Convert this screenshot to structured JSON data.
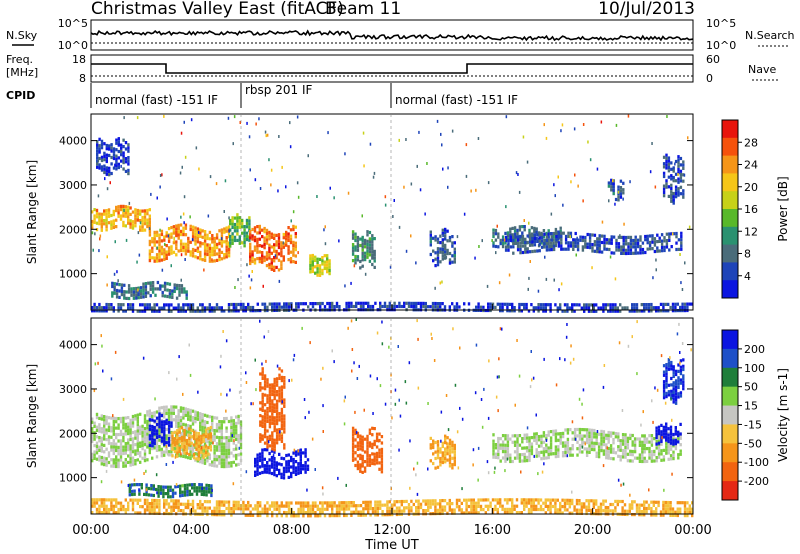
{
  "header": {
    "title": "Christmas Valley East (fitACF)",
    "beam": "Beam 11",
    "date": "10/Jul/2013"
  },
  "top_panels": {
    "nsky_label": "N.Sky",
    "nsearch_label": "N.Search",
    "noise_ticks": [
      "10^5",
      "10^0"
    ],
    "freq_label_1": "Freq.",
    "freq_label_2": "[MHz]",
    "freq_ticks": [
      "18",
      "8"
    ],
    "nave_ticks": [
      "60",
      "0"
    ],
    "nave_label": "Nave",
    "cpid_label": "CPID"
  },
  "cpid_segments": [
    {
      "label": "normal (fast) -151 IF",
      "start_hour": 0,
      "end_hour": 6
    },
    {
      "label": "rbsp 201 IF",
      "start_hour": 6,
      "end_hour": 12
    },
    {
      "label": "normal (fast) -151 IF",
      "start_hour": 12,
      "end_hour": 24
    }
  ],
  "axes": {
    "ylabel": "Slant Range [km]",
    "y_ticks": [
      "1000",
      "2000",
      "3000",
      "4000"
    ],
    "xlabel": "Time UT",
    "x_ticks": [
      "00:00",
      "04:00",
      "08:00",
      "12:00",
      "16:00",
      "20:00",
      "00:00"
    ]
  },
  "power_scale": {
    "label": "Power [dB]",
    "ticks": [
      "28",
      "24",
      "20",
      "16",
      "12",
      "8",
      "4"
    ],
    "colors": [
      "#e8140c",
      "#f5520c",
      "#f59518",
      "#f5c618",
      "#c7d118",
      "#58b82a",
      "#2a9170",
      "#4a6c7a",
      "#1e44b8",
      "#0b15e0"
    ]
  },
  "velocity_scale": {
    "label": "Velocity [m s-1]",
    "ticks": [
      "200",
      "100",
      "50",
      "15",
      "-15",
      "-50",
      "-100",
      "-200"
    ],
    "colors": [
      "#0b15e0",
      "#1e50c8",
      "#1f7e3a",
      "#7ccf40",
      "#c6c6c2",
      "#f5c23c",
      "#f5951a",
      "#f26410",
      "#e52814"
    ]
  },
  "chart_data": [
    {
      "type": "heatmap",
      "name": "Power",
      "x_unit": "hours UT",
      "y_unit": "km",
      "xlim": [
        0,
        24
      ],
      "ylim": [
        180,
        4600
      ],
      "zlabel": "Power [dB]",
      "echo_regions": [
        {
          "x": [
            0,
            2.3
          ],
          "range": [
            2050,
            2500
          ],
          "value": 22
        },
        {
          "x": [
            2.3,
            5.5
          ],
          "range": [
            1350,
            2050
          ],
          "value": 24
        },
        {
          "x": [
            5.5,
            6.3
          ],
          "range": [
            1700,
            2300
          ],
          "value": 14
        },
        {
          "x": [
            6.3,
            8.2
          ],
          "range": [
            1150,
            2000
          ],
          "value": 26
        },
        {
          "x": [
            8.7,
            9.5
          ],
          "range": [
            1000,
            1400
          ],
          "value": 18
        },
        {
          "x": [
            10.4,
            11.3
          ],
          "range": [
            1200,
            1900
          ],
          "value": 10
        },
        {
          "x": [
            13.5,
            14.5
          ],
          "range": [
            1250,
            1950
          ],
          "value": 6
        },
        {
          "x": [
            16,
            18.7
          ],
          "range": [
            1650,
            2050
          ],
          "value": 8
        },
        {
          "x": [
            16.5,
            23.5
          ],
          "range": [
            1500,
            1900
          ],
          "value": 5
        },
        {
          "x": [
            20.6,
            21.2
          ],
          "range": [
            2700,
            3100
          ],
          "value": 6
        },
        {
          "x": [
            22.8,
            23.6
          ],
          "range": [
            2700,
            3600
          ],
          "value": 5
        },
        {
          "x": [
            0.2,
            1.5
          ],
          "range": [
            3300,
            4000
          ],
          "value": 4
        },
        {
          "x": [
            0.8,
            3.8
          ],
          "range": [
            500,
            800
          ],
          "value": 8
        },
        {
          "x": [
            0,
            24
          ],
          "range": [
            200,
            350
          ],
          "value": 4
        }
      ]
    },
    {
      "type": "heatmap",
      "name": "Velocity",
      "x_unit": "hours UT",
      "y_unit": "km",
      "xlim": [
        0,
        24
      ],
      "ylim": [
        180,
        4600
      ],
      "zlabel": "Velocity [m s-1]",
      "echo_regions": [
        {
          "x": [
            0,
            6
          ],
          "range": [
            1400,
            2500
          ],
          "value": 0
        },
        {
          "x": [
            2.3,
            3.2
          ],
          "range": [
            1800,
            2400
          ],
          "value": 200
        },
        {
          "x": [
            3.2,
            4.8
          ],
          "range": [
            1500,
            2100
          ],
          "value": -80
        },
        {
          "x": [
            6.5,
            8.7
          ],
          "range": [
            1050,
            1600
          ],
          "value": 220
        },
        {
          "x": [
            6.7,
            7.7
          ],
          "range": [
            1700,
            3300
          ],
          "value": -200
        },
        {
          "x": [
            10.4,
            11.6
          ],
          "range": [
            1200,
            2050
          ],
          "value": -180
        },
        {
          "x": [
            13.5,
            14.5
          ],
          "range": [
            1300,
            1900
          ],
          "value": -80
        },
        {
          "x": [
            16,
            23.5
          ],
          "range": [
            1450,
            2050
          ],
          "value": 0
        },
        {
          "x": [
            22.5,
            23.5
          ],
          "range": [
            1800,
            2200
          ],
          "value": 220
        },
        {
          "x": [
            22.8,
            23.6
          ],
          "range": [
            2800,
            3600
          ],
          "value": 150
        },
        {
          "x": [
            1.5,
            4.8
          ],
          "range": [
            600,
            850
          ],
          "value": 60
        },
        {
          "x": [
            0,
            24
          ],
          "range": [
            200,
            500
          ],
          "value": -70
        }
      ]
    }
  ]
}
